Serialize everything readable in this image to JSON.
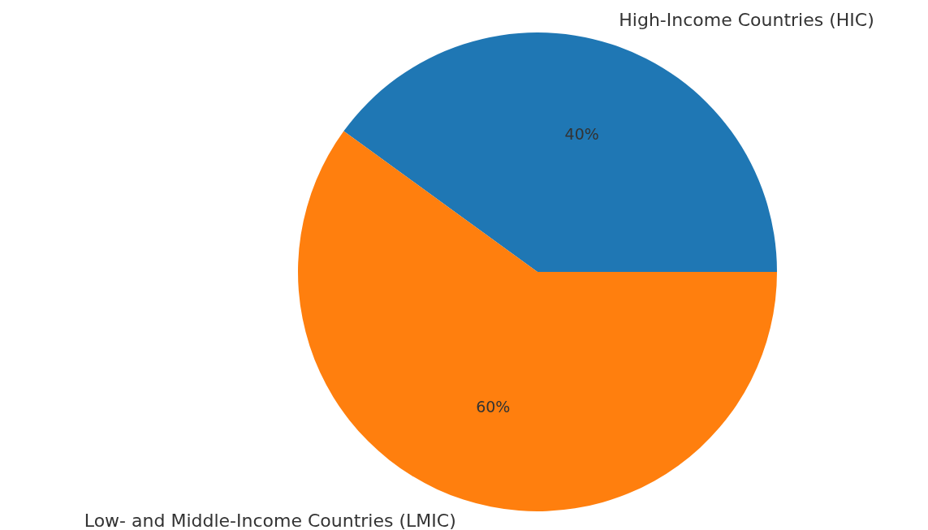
{
  "chart_data": {
    "type": "pie",
    "categories": [
      "High-Income Countries (HIC)",
      "Low- and Middle-Income Countries (LMIC)"
    ],
    "values": [
      40,
      60
    ],
    "colors": [
      "#1f77b4",
      "#ff7f0e"
    ],
    "value_labels": [
      "40%",
      "60%"
    ],
    "legend": false
  }
}
